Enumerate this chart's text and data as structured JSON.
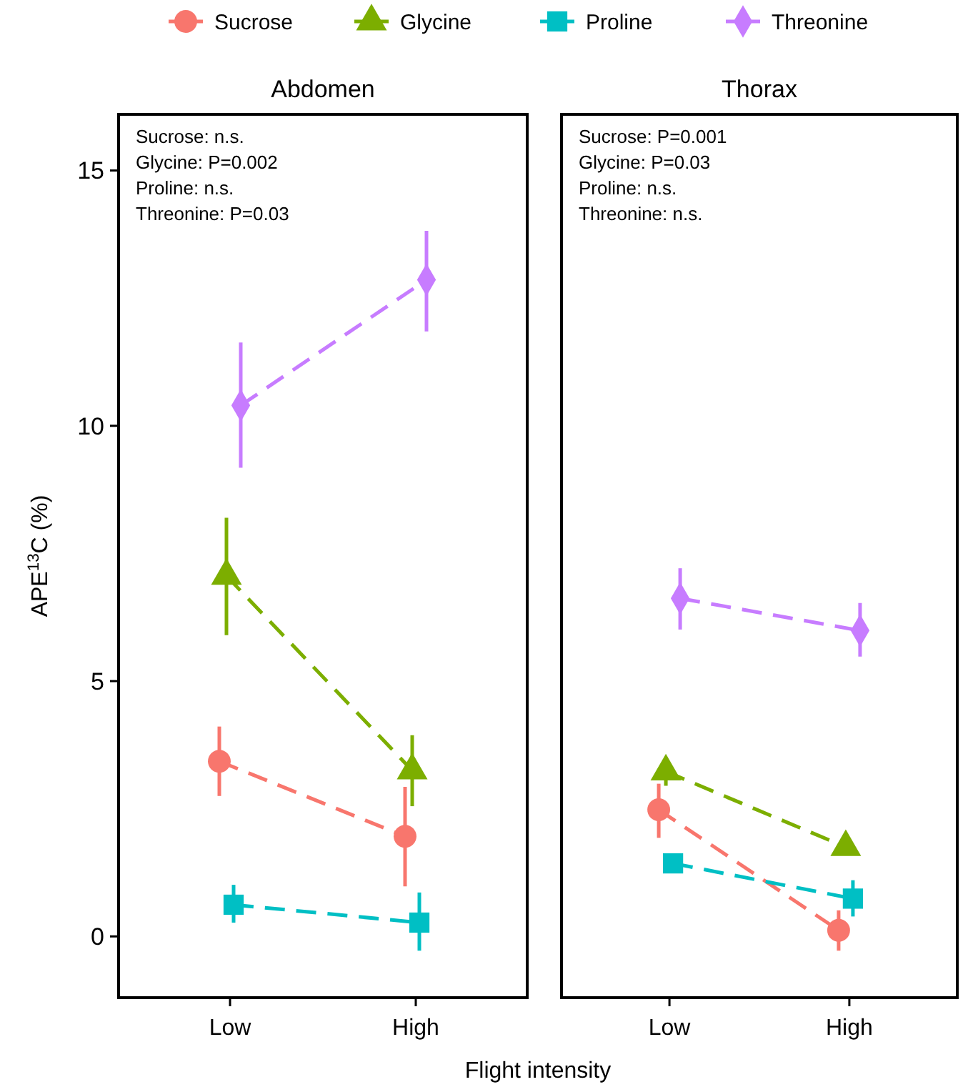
{
  "chart_data": [
    {
      "type": "line",
      "title": "Abdomen",
      "ylabel": "APE$^{13}$C (%)",
      "xlabel": "Flight intensity",
      "categories": [
        "Low",
        "High"
      ],
      "ylim": [
        -1.2,
        16.1
      ],
      "yticks": [
        0,
        5,
        10,
        15
      ],
      "grid": false,
      "legend": "top",
      "line_style": "dashed",
      "tick_labels": "xy",
      "annotations": [
        "Sucrose: n.s.",
        "Glycine: P=0.002",
        "Proline: n.s.",
        "Threonine: P=0.03"
      ],
      "series": [
        {
          "name": "Sucrose",
          "color": "#f8766d",
          "marker": "circle",
          "values": [
            3.43,
            1.96
          ],
          "errors": [
            [
              2.75,
              4.11
            ],
            [
              0.98,
              2.93
            ]
          ]
        },
        {
          "name": "Glycine",
          "color": "#7cae00",
          "marker": "triangle",
          "values": [
            7.06,
            3.25
          ],
          "errors": [
            [
              5.9,
              8.2
            ],
            [
              2.55,
              3.94
            ]
          ]
        },
        {
          "name": "Proline",
          "color": "#00bfc4",
          "marker": "square",
          "values": [
            0.62,
            0.27
          ],
          "errors": [
            [
              0.27,
              1.01
            ],
            [
              -0.28,
              0.86
            ]
          ]
        },
        {
          "name": "Threonine",
          "color": "#c77cff",
          "marker": "diamond",
          "values": [
            10.4,
            12.86
          ],
          "errors": [
            [
              9.18,
              11.63
            ],
            [
              11.85,
              13.82
            ]
          ]
        }
      ]
    },
    {
      "type": "line",
      "title": "Thorax",
      "categories": [
        "Low",
        "High"
      ],
      "ylim": [
        -1.2,
        16.1
      ],
      "grid": false,
      "line_style": "dashed",
      "tick_labels": "x",
      "annotations": [
        "Sucrose: P=0.001",
        "Glycine: P=0.03",
        "Proline: n.s.",
        "Threonine: n.s."
      ],
      "series": [
        {
          "color": "#f8766d",
          "marker": "circle",
          "values": [
            2.48,
            0.12
          ],
          "errors": [
            [
              1.93,
              2.99
            ],
            [
              -0.28,
              0.51
            ]
          ]
        },
        {
          "color": "#7cae00",
          "marker": "triangle",
          "values": [
            3.23,
            1.75
          ],
          "errors": [
            [
              2.95,
              3.45
            ],
            [
              1.6,
              1.9
            ]
          ]
        },
        {
          "color": "#00bfc4",
          "marker": "square",
          "values": [
            1.43,
            0.74
          ],
          "errors": [
            [
              1.28,
              1.58
            ],
            [
              0.39,
              1.1
            ]
          ]
        },
        {
          "color": "#c77cff",
          "marker": "diamond",
          "values": [
            6.62,
            5.99
          ],
          "errors": [
            [
              6.01,
              7.21
            ],
            [
              5.48,
              6.53
            ]
          ]
        }
      ]
    }
  ]
}
